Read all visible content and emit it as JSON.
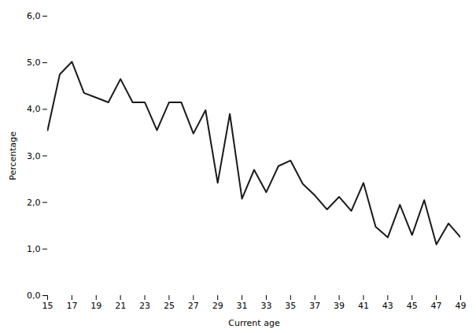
{
  "chart_data": {
    "type": "line",
    "xlabel": "Current age",
    "ylabel": "Percentage",
    "x": [
      15,
      16,
      17,
      18,
      19,
      20,
      21,
      22,
      23,
      24,
      25,
      26,
      27,
      28,
      29,
      30,
      31,
      32,
      33,
      34,
      35,
      36,
      37,
      38,
      39,
      40,
      41,
      42,
      43,
      44,
      45,
      46,
      47,
      48,
      49
    ],
    "values": [
      3.55,
      4.75,
      5.02,
      4.35,
      4.25,
      4.15,
      4.65,
      4.15,
      4.15,
      3.55,
      4.15,
      4.15,
      3.48,
      3.98,
      2.42,
      3.9,
      2.08,
      2.7,
      2.22,
      2.78,
      2.9,
      2.4,
      2.15,
      1.85,
      2.12,
      1.82,
      2.42,
      1.48,
      1.25,
      1.95,
      1.3,
      2.05,
      1.1,
      1.55,
      1.25
    ],
    "color": "#1a1a1a",
    "xlim": [
      15,
      49
    ],
    "ylim": [
      0.0,
      6.0
    ],
    "xticks": [
      15,
      17,
      19,
      21,
      23,
      25,
      27,
      29,
      31,
      33,
      35,
      37,
      39,
      41,
      43,
      45,
      47,
      49
    ],
    "yticks": [
      {
        "value": 0.0,
        "label": "0,0"
      },
      {
        "value": 1.0,
        "label": "1,0"
      },
      {
        "value": 2.0,
        "label": "2,0"
      },
      {
        "value": 3.0,
        "label": "3,0"
      },
      {
        "value": 4.0,
        "label": "4,0"
      },
      {
        "value": 5.0,
        "label": "5,0"
      },
      {
        "value": 6.0,
        "label": "6,0"
      }
    ],
    "grid": false
  }
}
